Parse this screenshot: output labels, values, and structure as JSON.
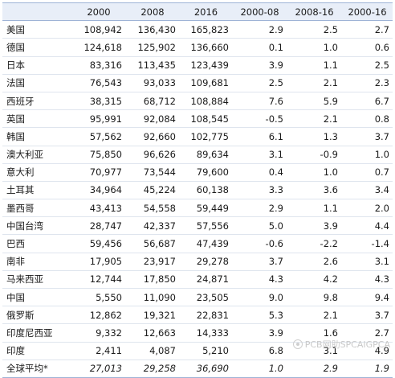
{
  "table": {
    "headers": [
      "",
      "2000",
      "2008",
      "2016",
      "2000-08",
      "2008-16",
      "2000-16"
    ],
    "rows": [
      [
        "美国",
        "108,942",
        "136,430",
        "165,823",
        "2.9",
        "2.5",
        "2.7"
      ],
      [
        "德国",
        "124,618",
        "125,902",
        "136,660",
        "0.1",
        "1.0",
        "0.6"
      ],
      [
        "日本",
        "83,316",
        "113,435",
        "123,439",
        "3.9",
        "1.1",
        "2.5"
      ],
      [
        "法国",
        "76,543",
        "93,033",
        "109,681",
        "2.5",
        "2.1",
        "2.3"
      ],
      [
        "西班牙",
        "38,315",
        "68,712",
        "108,884",
        "7.6",
        "5.9",
        "6.7"
      ],
      [
        "英国",
        "95,991",
        "92,084",
        "108,545",
        "-0.5",
        "2.1",
        "0.8"
      ],
      [
        "韩国",
        "57,562",
        "92,660",
        "102,775",
        "6.1",
        "1.3",
        "3.7"
      ],
      [
        "澳大利亚",
        "75,850",
        "96,626",
        "89,634",
        "3.1",
        "-0.9",
        "1.0"
      ],
      [
        "意大利",
        "70,977",
        "73,544",
        "79,600",
        "0.4",
        "1.0",
        "0.7"
      ],
      [
        "土耳其",
        "34,964",
        "45,224",
        "60,138",
        "3.3",
        "3.6",
        "3.4"
      ],
      [
        "墨西哥",
        "43,413",
        "54,558",
        "59,449",
        "2.9",
        "1.1",
        "2.0"
      ],
      [
        "中国台湾",
        "28,747",
        "42,337",
        "57,556",
        "5.0",
        "3.9",
        "4.4"
      ],
      [
        "巴西",
        "59,456",
        "56,687",
        "47,439",
        "-0.6",
        "-2.2",
        "-1.4"
      ],
      [
        "南非",
        "17,905",
        "23,917",
        "29,278",
        "3.7",
        "2.6",
        "3.1"
      ],
      [
        "马来西亚",
        "12,744",
        "17,850",
        "24,871",
        "4.3",
        "4.2",
        "4.3"
      ],
      [
        "中国",
        "5,550",
        "11,090",
        "23,505",
        "9.0",
        "9.8",
        "9.4"
      ],
      [
        "俄罗斯",
        "12,862",
        "19,321",
        "22,831",
        "5.3",
        "2.1",
        "3.7"
      ],
      [
        "印度尼西亚",
        "9,332",
        "12,663",
        "14,333",
        "3.9",
        "1.6",
        "2.7"
      ],
      [
        "印度",
        "2,411",
        "4,087",
        "5,210",
        "6.8",
        "3.1",
        "4.9"
      ]
    ],
    "average": [
      "全球平均*",
      "27,013",
      "29,258",
      "36,690",
      "1.0",
      "2.9",
      "1.9"
    ]
  },
  "watermark": {
    "text": "PCB网助SPCAIGPCA",
    "icon": "wechat-icon"
  }
}
